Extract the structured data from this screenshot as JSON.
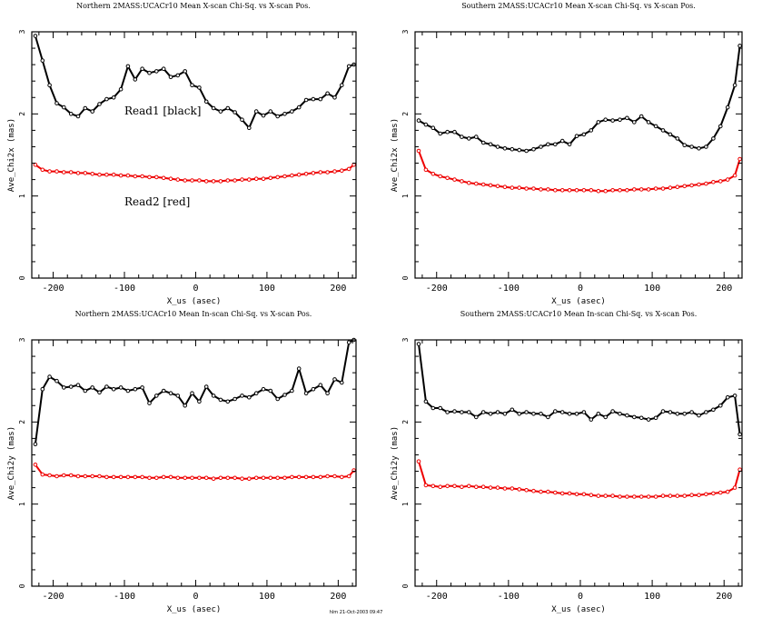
{
  "chart_data": [
    {
      "type": "line",
      "title": "Northern 2MASS:UCACr10 Mean X-scan Chi-Sq. vs X-scan Pos.",
      "xlabel": "X_us (asec)",
      "ylabel": "Ave_Chi2x (mas)",
      "xlim": [
        -230,
        225
      ],
      "ylim": [
        0,
        3
      ],
      "xticks": [
        -200,
        -100,
        0,
        100,
        200
      ],
      "xticklabels": [
        "-200",
        "-100",
        "0",
        "100",
        "200"
      ],
      "yticks": [
        0,
        1,
        2,
        3
      ],
      "yticklabels": [
        "0",
        "1",
        "2",
        "3"
      ],
      "annotations": [
        "Read1 [black]",
        "Read2 [red]"
      ],
      "series": [
        {
          "name": "Read1",
          "color": "#000000",
          "x": [
            -225,
            -215,
            -205,
            -195,
            -185,
            -175,
            -165,
            -155,
            -145,
            -135,
            -125,
            -115,
            -105,
            -95,
            -85,
            -75,
            -65,
            -55,
            -45,
            -35,
            -25,
            -15,
            -5,
            5,
            15,
            25,
            35,
            45,
            55,
            65,
            75,
            85,
            95,
            105,
            115,
            125,
            135,
            145,
            155,
            165,
            175,
            185,
            195,
            205,
            215,
            222
          ],
          "y": [
            2.95,
            2.65,
            2.35,
            2.13,
            2.08,
            2.0,
            1.97,
            2.07,
            2.03,
            2.12,
            2.18,
            2.2,
            2.3,
            2.58,
            2.42,
            2.55,
            2.5,
            2.52,
            2.55,
            2.45,
            2.47,
            2.52,
            2.35,
            2.32,
            2.15,
            2.07,
            2.03,
            2.07,
            2.02,
            1.93,
            1.83,
            2.03,
            1.98,
            2.03,
            1.97,
            2.0,
            2.03,
            2.08,
            2.17,
            2.18,
            2.18,
            2.25,
            2.2,
            2.35,
            2.58,
            2.6
          ]
        },
        {
          "name": "Read2",
          "color": "#ee0000",
          "x": [
            -225,
            -215,
            -205,
            -195,
            -185,
            -175,
            -165,
            -155,
            -145,
            -135,
            -125,
            -115,
            -105,
            -95,
            -85,
            -75,
            -65,
            -55,
            -45,
            -35,
            -25,
            -15,
            -5,
            5,
            15,
            25,
            35,
            45,
            55,
            65,
            75,
            85,
            95,
            105,
            115,
            125,
            135,
            145,
            155,
            165,
            175,
            185,
            195,
            205,
            215,
            222
          ],
          "y": [
            1.38,
            1.32,
            1.3,
            1.3,
            1.29,
            1.29,
            1.28,
            1.28,
            1.27,
            1.26,
            1.26,
            1.26,
            1.25,
            1.25,
            1.24,
            1.24,
            1.23,
            1.23,
            1.22,
            1.21,
            1.2,
            1.19,
            1.19,
            1.19,
            1.18,
            1.18,
            1.18,
            1.19,
            1.19,
            1.2,
            1.2,
            1.21,
            1.21,
            1.22,
            1.23,
            1.24,
            1.25,
            1.26,
            1.27,
            1.28,
            1.29,
            1.29,
            1.3,
            1.31,
            1.33,
            1.38
          ]
        }
      ]
    },
    {
      "type": "line",
      "title": "Southern 2MASS:UCACr10 Mean X-scan Chi-Sq. vs X-scan Pos.",
      "xlabel": "X_us (asec)",
      "ylabel": "Ave_Chi2x (mas)",
      "xlim": [
        -230,
        225
      ],
      "ylim": [
        0,
        3
      ],
      "xticks": [
        -200,
        -100,
        0,
        100,
        200
      ],
      "xticklabels": [
        "-200",
        "-100",
        "0",
        "100",
        "200"
      ],
      "yticks": [
        0,
        1,
        2,
        3
      ],
      "yticklabels": [
        "0",
        "1",
        "2",
        "3"
      ],
      "series": [
        {
          "name": "Read1",
          "color": "#000000",
          "x": [
            -225,
            -215,
            -205,
            -195,
            -185,
            -175,
            -165,
            -155,
            -145,
            -135,
            -125,
            -115,
            -105,
            -95,
            -85,
            -75,
            -65,
            -55,
            -45,
            -35,
            -25,
            -15,
            -5,
            5,
            15,
            25,
            35,
            45,
            55,
            65,
            75,
            85,
            95,
            105,
            115,
            125,
            135,
            145,
            155,
            165,
            175,
            185,
            195,
            205,
            215,
            222
          ],
          "y": [
            1.92,
            1.87,
            1.83,
            1.76,
            1.78,
            1.78,
            1.72,
            1.7,
            1.72,
            1.65,
            1.63,
            1.6,
            1.58,
            1.57,
            1.56,
            1.55,
            1.57,
            1.6,
            1.63,
            1.63,
            1.67,
            1.63,
            1.73,
            1.75,
            1.8,
            1.9,
            1.93,
            1.92,
            1.93,
            1.95,
            1.9,
            1.97,
            1.9,
            1.85,
            1.8,
            1.75,
            1.7,
            1.62,
            1.6,
            1.58,
            1.6,
            1.7,
            1.85,
            2.08,
            2.35,
            2.83
          ]
        },
        {
          "name": "Read2",
          "color": "#ee0000",
          "x": [
            -225,
            -215,
            -205,
            -195,
            -185,
            -175,
            -165,
            -155,
            -145,
            -135,
            -125,
            -115,
            -105,
            -95,
            -85,
            -75,
            -65,
            -55,
            -45,
            -35,
            -25,
            -15,
            -5,
            5,
            15,
            25,
            35,
            45,
            55,
            65,
            75,
            85,
            95,
            105,
            115,
            125,
            135,
            145,
            155,
            165,
            175,
            185,
            195,
            205,
            215,
            222
          ],
          "y": [
            1.55,
            1.32,
            1.27,
            1.24,
            1.22,
            1.2,
            1.18,
            1.16,
            1.15,
            1.14,
            1.13,
            1.12,
            1.11,
            1.1,
            1.1,
            1.09,
            1.09,
            1.08,
            1.08,
            1.07,
            1.07,
            1.07,
            1.07,
            1.07,
            1.07,
            1.06,
            1.06,
            1.07,
            1.07,
            1.07,
            1.08,
            1.08,
            1.08,
            1.09,
            1.09,
            1.1,
            1.11,
            1.12,
            1.13,
            1.14,
            1.15,
            1.17,
            1.18,
            1.2,
            1.25,
            1.45
          ]
        }
      ]
    },
    {
      "type": "line",
      "title": "Northern 2MASS:UCACr10 Mean In-scan Chi-Sq. vs X-scan Pos.",
      "xlabel": "X_us (asec)",
      "ylabel": "Ave_Chi2y (mas)",
      "xlim": [
        -230,
        225
      ],
      "ylim": [
        0,
        3
      ],
      "xticks": [
        -200,
        -100,
        0,
        100,
        200
      ],
      "xticklabels": [
        "-200",
        "-100",
        "0",
        "100",
        "200"
      ],
      "yticks": [
        0,
        1,
        2,
        3
      ],
      "yticklabels": [
        "0",
        "1",
        "2",
        "3"
      ],
      "series": [
        {
          "name": "Read1",
          "color": "#000000",
          "x": [
            -225,
            -215,
            -205,
            -195,
            -185,
            -175,
            -165,
            -155,
            -145,
            -135,
            -125,
            -115,
            -105,
            -95,
            -85,
            -75,
            -65,
            -55,
            -45,
            -35,
            -25,
            -15,
            -5,
            5,
            15,
            25,
            35,
            45,
            55,
            65,
            75,
            85,
            95,
            105,
            115,
            125,
            135,
            145,
            155,
            165,
            175,
            185,
            195,
            205,
            215,
            222
          ],
          "y": [
            1.73,
            2.4,
            2.55,
            2.5,
            2.42,
            2.43,
            2.45,
            2.38,
            2.42,
            2.36,
            2.43,
            2.4,
            2.42,
            2.38,
            2.4,
            2.42,
            2.23,
            2.32,
            2.38,
            2.35,
            2.32,
            2.2,
            2.35,
            2.25,
            2.43,
            2.32,
            2.27,
            2.25,
            2.28,
            2.32,
            2.3,
            2.35,
            2.4,
            2.38,
            2.28,
            2.33,
            2.38,
            2.65,
            2.35,
            2.4,
            2.45,
            2.35,
            2.52,
            2.48,
            2.97,
            3.0
          ]
        },
        {
          "name": "Read2",
          "color": "#ee0000",
          "x": [
            -225,
            -215,
            -205,
            -195,
            -185,
            -175,
            -165,
            -155,
            -145,
            -135,
            -125,
            -115,
            -105,
            -95,
            -85,
            -75,
            -65,
            -55,
            -45,
            -35,
            -25,
            -15,
            -5,
            5,
            15,
            25,
            35,
            45,
            55,
            65,
            75,
            85,
            95,
            105,
            115,
            125,
            135,
            145,
            155,
            165,
            175,
            185,
            195,
            205,
            215,
            222
          ],
          "y": [
            1.48,
            1.36,
            1.35,
            1.34,
            1.35,
            1.35,
            1.34,
            1.34,
            1.34,
            1.34,
            1.33,
            1.33,
            1.33,
            1.33,
            1.33,
            1.33,
            1.32,
            1.32,
            1.33,
            1.33,
            1.32,
            1.32,
            1.32,
            1.32,
            1.32,
            1.31,
            1.32,
            1.32,
            1.32,
            1.31,
            1.31,
            1.32,
            1.32,
            1.32,
            1.32,
            1.32,
            1.33,
            1.33,
            1.33,
            1.33,
            1.33,
            1.34,
            1.34,
            1.33,
            1.34,
            1.41
          ]
        }
      ]
    },
    {
      "type": "line",
      "title": "Southern 2MASS:UCACr10 Mean In-scan Chi-Sq. vs X-scan Pos.",
      "xlabel": "X_us (asec)",
      "ylabel": "Ave_Chi2y (mas)",
      "xlim": [
        -230,
        225
      ],
      "ylim": [
        0,
        3
      ],
      "xticks": [
        -200,
        -100,
        0,
        100,
        200
      ],
      "xticklabels": [
        "-200",
        "-100",
        "0",
        "100",
        "200"
      ],
      "yticks": [
        0,
        1,
        2,
        3
      ],
      "yticklabels": [
        "0",
        "1",
        "2",
        "3"
      ],
      "series": [
        {
          "name": "Read1",
          "color": "#000000",
          "x": [
            -225,
            -215,
            -205,
            -195,
            -185,
            -175,
            -165,
            -155,
            -145,
            -135,
            -125,
            -115,
            -105,
            -95,
            -85,
            -75,
            -65,
            -55,
            -45,
            -35,
            -25,
            -15,
            -5,
            5,
            15,
            25,
            35,
            45,
            55,
            65,
            75,
            85,
            95,
            105,
            115,
            125,
            135,
            145,
            155,
            165,
            175,
            185,
            195,
            205,
            215,
            222
          ],
          "y": [
            2.95,
            2.25,
            2.17,
            2.17,
            2.12,
            2.13,
            2.12,
            2.12,
            2.06,
            2.12,
            2.1,
            2.12,
            2.1,
            2.15,
            2.1,
            2.12,
            2.1,
            2.1,
            2.06,
            2.13,
            2.12,
            2.1,
            2.1,
            2.12,
            2.03,
            2.1,
            2.06,
            2.13,
            2.1,
            2.08,
            2.06,
            2.05,
            2.03,
            2.05,
            2.13,
            2.12,
            2.1,
            2.1,
            2.12,
            2.08,
            2.12,
            2.15,
            2.2,
            2.3,
            2.32,
            1.85
          ]
        },
        {
          "name": "Read2",
          "color": "#ee0000",
          "x": [
            -225,
            -215,
            -205,
            -195,
            -185,
            -175,
            -165,
            -155,
            -145,
            -135,
            -125,
            -115,
            -105,
            -95,
            -85,
            -75,
            -65,
            -55,
            -45,
            -35,
            -25,
            -15,
            -5,
            5,
            15,
            25,
            35,
            45,
            55,
            65,
            75,
            85,
            95,
            105,
            115,
            125,
            135,
            145,
            155,
            165,
            175,
            185,
            195,
            205,
            215,
            222
          ],
          "y": [
            1.52,
            1.23,
            1.22,
            1.21,
            1.22,
            1.22,
            1.21,
            1.22,
            1.21,
            1.21,
            1.2,
            1.2,
            1.19,
            1.19,
            1.18,
            1.17,
            1.16,
            1.15,
            1.15,
            1.14,
            1.13,
            1.13,
            1.12,
            1.12,
            1.11,
            1.1,
            1.1,
            1.1,
            1.09,
            1.09,
            1.09,
            1.09,
            1.09,
            1.09,
            1.1,
            1.1,
            1.1,
            1.1,
            1.11,
            1.11,
            1.12,
            1.13,
            1.14,
            1.15,
            1.2,
            1.42
          ]
        }
      ]
    }
  ],
  "footer": "hlm 21-Oct-2003 09:47"
}
